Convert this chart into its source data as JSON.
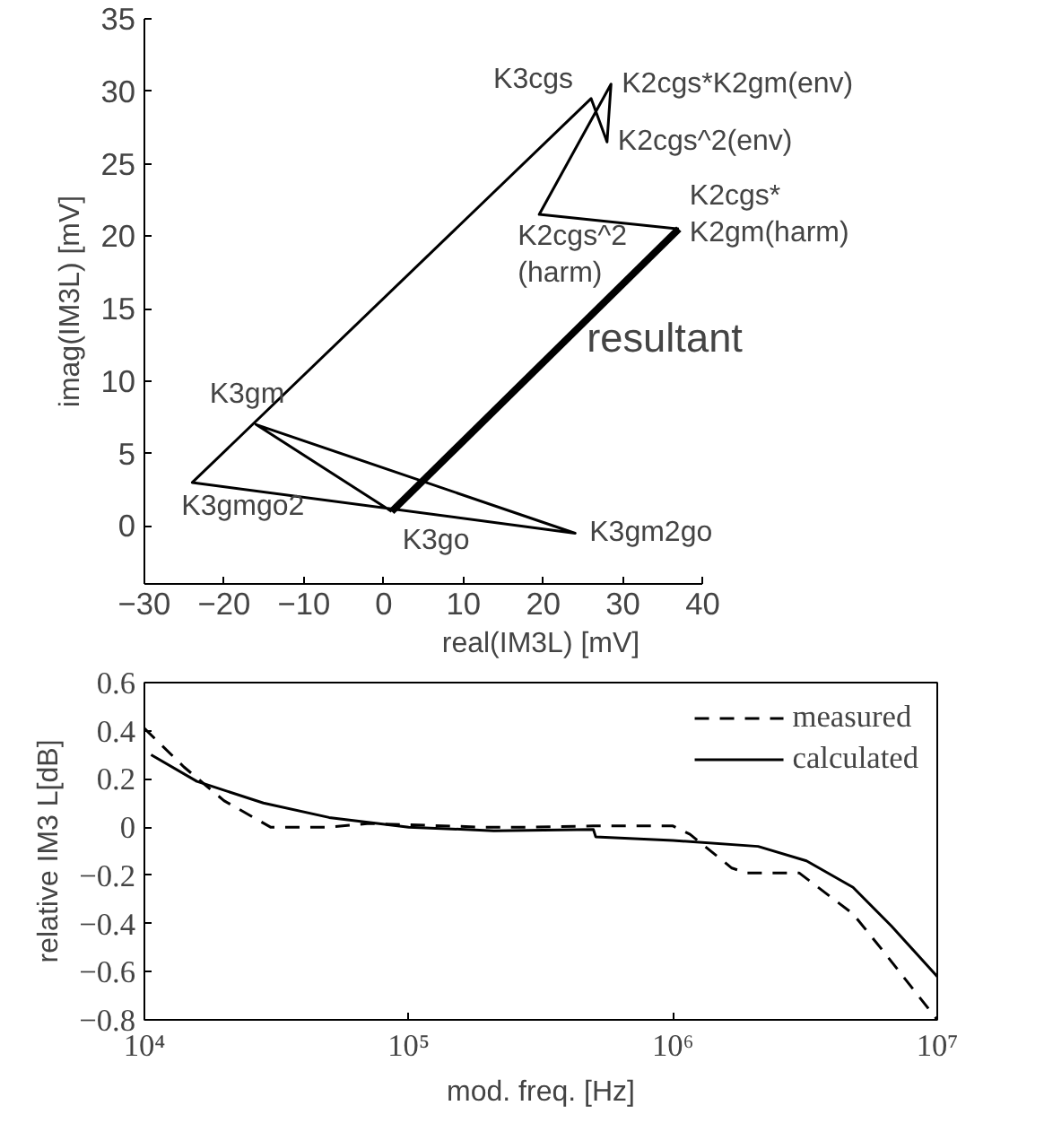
{
  "chart_data": [
    {
      "type": "line",
      "xlabel": "real(IM3L) [mV]",
      "ylabel": "imag(IM3L) [mV]",
      "xlim": [
        -30,
        40
      ],
      "ylim": [
        -4,
        35
      ],
      "xticks": [
        -30,
        -20,
        -10,
        0,
        10,
        20,
        30,
        40
      ],
      "yticks": [
        0,
        5,
        10,
        15,
        20,
        25,
        30,
        35
      ],
      "grid": false,
      "legend": false,
      "series": [
        {
          "color": "#000000",
          "x": [
            1,
            -16,
            24,
            -24,
            26,
            28,
            28.5,
            19.5,
            37
          ],
          "values": [
            1,
            7,
            -0.5,
            3,
            29.5,
            26.5,
            30.5,
            21.5,
            20.5
          ]
        },
        {
          "color": "#000000",
          "x": [
            1,
            37
          ],
          "values": [
            1,
            20.5
          ]
        }
      ],
      "annotations": [
        {
          "text": "K3cgs",
          "x": 26,
          "y": 29.5
        },
        {
          "text": "K2cgs*K2gm(env)",
          "x": 28.5,
          "y": 30.5
        },
        {
          "text": "K2cgs^2(env)",
          "x": 28,
          "y": 26.5
        },
        {
          "text": "K2cgs^2\n(harm)",
          "x": 19.5,
          "y": 21.5
        },
        {
          "text": "K2cgs*\nK2gm(harm)",
          "x": 37,
          "y": 20.5
        },
        {
          "text": "resultant",
          "x": 25,
          "y": 13
        },
        {
          "text": "K3gm",
          "x": -16,
          "y": 7
        },
        {
          "text": "K3gmgo2",
          "x": -24,
          "y": 3
        },
        {
          "text": "K3go",
          "x": 1,
          "y": 0.5
        },
        {
          "text": "K3gm2go",
          "x": 24,
          "y": -0.5
        }
      ]
    },
    {
      "type": "line",
      "xlabel": "mod. freq. [Hz]",
      "ylabel": "relative IM3 L[dB]",
      "log": "x",
      "xlim": [
        10000,
        10000000
      ],
      "ylim": [
        -0.8,
        0.6
      ],
      "xticks": [
        {
          "value": 10000,
          "label": "10⁴"
        },
        {
          "value": 100000,
          "label": "10⁵"
        },
        {
          "value": 1000000,
          "label": "10⁶"
        },
        {
          "value": 10000000,
          "label": "10⁷"
        }
      ],
      "yticks": [
        -0.8,
        -0.6,
        -0.4,
        -0.2,
        0,
        0.2,
        0.4,
        0.6
      ],
      "grid": false,
      "legend": "top right",
      "series": [
        {
          "name": "measured",
          "color": "#000000",
          "line_style": "dashed",
          "x": [
            10000,
            14100,
            20000,
            30000,
            50000,
            71000,
            190000,
            300000,
            500000,
            840000,
            1000000,
            1160000,
            1670000,
            1900000,
            3000000,
            4800000,
            6300000,
            10000000
          ],
          "values": [
            0.41,
            0.25,
            0.11,
            0.0,
            0.0,
            0.015,
            0.0,
            0.0,
            0.005,
            0.005,
            0.005,
            -0.03,
            -0.17,
            -0.19,
            -0.19,
            -0.36,
            -0.52,
            -0.8
          ]
        },
        {
          "name": "calculated",
          "color": "#000000",
          "line_style": "solid",
          "x": [
            10600,
            15800,
            28200,
            50000,
            100000,
            210000,
            500000,
            510000,
            1000000,
            2100000,
            3200000,
            4800000,
            6700000,
            10000000
          ],
          "values": [
            0.3,
            0.19,
            0.1,
            0.04,
            0.0,
            -0.015,
            -0.01,
            -0.04,
            -0.055,
            -0.08,
            -0.14,
            -0.25,
            -0.41,
            -0.62
          ]
        }
      ]
    }
  ]
}
